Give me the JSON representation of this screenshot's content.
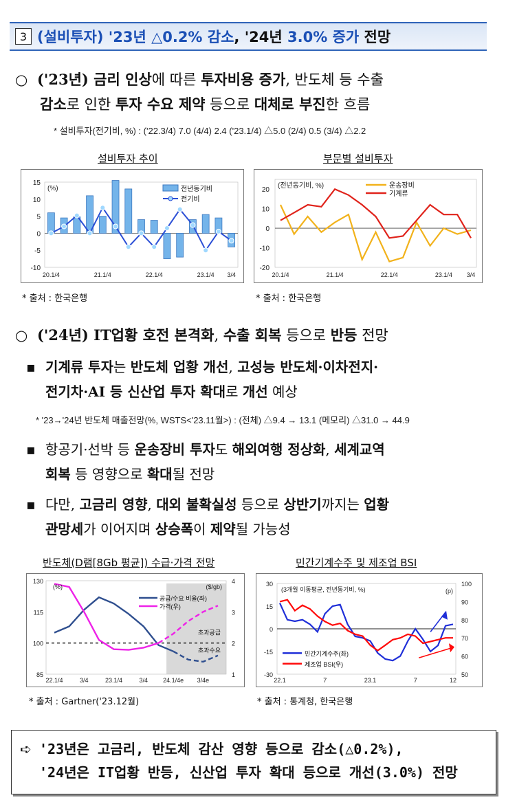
{
  "section": {
    "number": "3",
    "title_pre": "(설비투자) '23년 ",
    "title_v1": "△0.2% 감소",
    "title_mid": ", '24년 ",
    "title_v2": "3.0% 증가",
    "title_post": " 전망"
  },
  "p1": {
    "mark": "○",
    "tag": "('23년)",
    "line1_a": " 금리 인상",
    "line1_b": "에 따른 ",
    "line1_c": "투자비용 증가",
    "line1_d": ", 반도체 등 수출",
    "line2_a": "감소",
    "line2_b": "로 인한 ",
    "line2_c": "투자 수요 제약",
    "line2_d": " 등으로 ",
    "line2_e": "대체로 부진",
    "line2_f": "한 흐름",
    "note": "* 설비투자(전기비, %) : ('22.3/4) 7.0  (4/4) 2.4  ('23.1/4) △5.0  (2/4) 0.5  (3/4) △2.2"
  },
  "chart1": {
    "title": "설비투자 추이",
    "unit": "(%)",
    "legend": [
      "전년동기비",
      "전기비"
    ],
    "y_ticks": [
      "15",
      "10",
      "5",
      "0",
      "-5",
      "-10"
    ],
    "x_ticks": [
      "20.1/4",
      "21.1/4",
      "22.1/4",
      "23.1/4",
      "3/4"
    ],
    "source": "* 출처 : 한국은행"
  },
  "chart2": {
    "title": "부문별 설비투자",
    "unit": "(전년동기비, %)",
    "legend": [
      "운송장비",
      "기계류"
    ],
    "y_ticks": [
      "20",
      "10",
      "0",
      "-10",
      "-20"
    ],
    "x_ticks": [
      "20.1/4",
      "21.1/4",
      "22.1/4",
      "23.1/4",
      "3/4"
    ],
    "source": "* 출처 : 한국은행"
  },
  "p2": {
    "mark": "○",
    "tag": "('24년)",
    "text_a": " IT업황 호전 본격화",
    "text_b": ", ",
    "text_c": "수출 회복",
    "text_d": " 등으로 ",
    "text_e": "반등",
    "text_f": " 전망"
  },
  "s1": {
    "mark": "▪",
    "line1_a": "기계류 투자",
    "line1_b": "는 ",
    "line1_c": "반도체 업황 개선",
    "line1_d": ", ",
    "line1_e": "고성능 반도체·이차전지·",
    "line2_a": "전기차·AI 등 신산업 투자 확대",
    "line2_b": "로 ",
    "line2_c": "개선",
    "line2_d": " 예상",
    "note": "* '23→'24년 반도체 매출전망(%, WSTS<'23.11월>) : (전체) △9.4 → 13.1  (메모리) △31.0 → 44.9"
  },
  "s2": {
    "mark": "▪",
    "line1_a": "항공기·선박 등 ",
    "line1_b": "운송장비 투자",
    "line1_c": "도 ",
    "line1_d": "해외여행 정상화",
    "line1_e": ", ",
    "line1_f": "세계교역",
    "line2_a": "회복",
    "line2_b": " 등 영향으로 ",
    "line2_c": "확대",
    "line2_d": "될 전망"
  },
  "s3": {
    "mark": "▪",
    "line1_a": "다만, ",
    "line1_b": "고금리 영향",
    "line1_c": ", ",
    "line1_d": "대외 불확실성",
    "line1_e": " 등으로 ",
    "line1_f": "상반기",
    "line1_g": "까지는 ",
    "line1_h": "업황",
    "line2_a": "관망세",
    "line2_b": "가 이어지며 ",
    "line2_c": "상승폭",
    "line2_d": "이 ",
    "line2_e": "제약",
    "line2_f": "될 가능성"
  },
  "chart3": {
    "title": "반도체(D램[8Gb 평균]) 수급·가격 전망",
    "unit_left": "(%)",
    "unit_right": "($/gb)",
    "legend": [
      "공급/수요 비율(좌)",
      "가격(우)"
    ],
    "annot_top": "초과공급",
    "annot_bottom": "초과수요",
    "y_left": [
      "130",
      "115",
      "100",
      "85"
    ],
    "y_right": [
      "4",
      "3",
      "2",
      "1"
    ],
    "x_ticks": [
      "22.1/4",
      "3/4",
      "23.1/4",
      "3/4",
      "24.1/4e",
      "3/4e"
    ],
    "source": "* 출처 : Gartner('23.12월)"
  },
  "chart4": {
    "title": "민간기계수주 및 제조업 BSI",
    "unit_left": "(3개월 이동평균, 전년동기비, %)",
    "unit_right": "(p)",
    "legend": [
      "민간기계수주(좌)",
      "제조업 BSI(우)"
    ],
    "y_left": [
      "30",
      "15",
      "0",
      "-15",
      "-30"
    ],
    "y_right": [
      "100",
      "90",
      "80",
      "70",
      "60",
      "50"
    ],
    "x_ticks": [
      "22.1",
      "7",
      "23.1",
      "7",
      "12"
    ],
    "source": "* 출처 : 통계청, 한국은행"
  },
  "summary": {
    "arrow": "➪",
    "line1": "'23년은 고금리, 반도체 감산 영향 등으로 감소(△0.2%),",
    "line2": "'24년은 IT업황 반등, 신산업 투자 확대 등으로 개선(3.0%) 전망"
  },
  "chart_data": [
    {
      "type": "bar",
      "name": "설비투자 추이",
      "categories": [
        "20.1/4",
        "20.2/4",
        "20.3/4",
        "20.4/4",
        "21.1/4",
        "21.2/4",
        "21.3/4",
        "21.4/4",
        "22.1/4",
        "22.2/4",
        "22.3/4",
        "22.4/4",
        "23.1/4",
        "23.2/4",
        "23.3/4"
      ],
      "series": [
        {
          "name": "전년동기비",
          "values": [
            6.0,
            4.5,
            4.8,
            11.0,
            5.0,
            15.5,
            13.0,
            4.0,
            3.8,
            -7.5,
            -7.0,
            4.0,
            5.5,
            4.5,
            -4.0
          ]
        },
        {
          "name": "전기비",
          "values": [
            0.0,
            2.0,
            5.2,
            0.0,
            7.5,
            2.0,
            -4.0,
            0.0,
            -4.0,
            1.5,
            7.0,
            2.4,
            -5.0,
            0.5,
            -2.2
          ]
        }
      ],
      "ylim": [
        -10,
        15
      ]
    },
    {
      "type": "line",
      "name": "부문별 설비투자",
      "categories": [
        "20.1/4",
        "20.2/4",
        "20.3/4",
        "20.4/4",
        "21.1/4",
        "21.2/4",
        "21.3/4",
        "21.4/4",
        "22.1/4",
        "22.2/4",
        "22.3/4",
        "22.4/4",
        "23.1/4",
        "23.2/4",
        "23.3/4"
      ],
      "series": [
        {
          "name": "운송장비",
          "values": [
            12,
            -3,
            6,
            -2,
            3,
            7,
            -16,
            -2,
            -17,
            -15,
            3,
            -9,
            0,
            -3,
            -1
          ]
        },
        {
          "name": "기계류",
          "values": [
            4,
            8,
            12,
            11,
            20,
            17,
            12,
            6,
            -5,
            -4,
            4,
            12,
            7,
            7,
            -5
          ]
        }
      ],
      "ylim": [
        -20,
        25
      ]
    },
    {
      "type": "line",
      "name": "반도체(D램[8Gb 평균]) 수급·가격 전망",
      "categories": [
        "22.1/4",
        "22.2/4",
        "22.3/4",
        "22.4/4",
        "23.1/4",
        "23.2/4",
        "23.3/4",
        "23.4/4",
        "24.1/4e",
        "24.2/4e",
        "24.3/4e",
        "24.4/4e"
      ],
      "series": [
        {
          "name": "공급/수요 비율(좌)",
          "axis": "left",
          "values": [
            105,
            108,
            116,
            122,
            119,
            114,
            108,
            99,
            96,
            92,
            91,
            94
          ]
        },
        {
          "name": "가격(우)",
          "axis": "right",
          "values": [
            3.9,
            3.8,
            3.0,
            2.1,
            1.8,
            1.78,
            1.85,
            2.0,
            2.3,
            2.7,
            3.0,
            3.2
          ]
        }
      ],
      "ylim_left": [
        85,
        130
      ],
      "ylim_right": [
        1,
        4
      ],
      "reference_line": 100,
      "shaded_forecast_from": "24.1/4e"
    },
    {
      "type": "line",
      "name": "민간기계수주 및 제조업 BSI",
      "x": [
        "22.1",
        "22.2",
        "22.3",
        "22.4",
        "22.5",
        "22.6",
        "22.7",
        "22.8",
        "22.9",
        "22.10",
        "22.11",
        "22.12",
        "23.1",
        "23.2",
        "23.3",
        "23.4",
        "23.5",
        "23.6",
        "23.7",
        "23.8",
        "23.9",
        "23.10",
        "23.11",
        "23.12"
      ],
      "series": [
        {
          "name": "민간기계수주(좌)",
          "axis": "left",
          "values": [
            17,
            6,
            5,
            6,
            3,
            -2,
            10,
            15,
            16,
            3,
            -5,
            -6,
            -8,
            -16,
            -20,
            -21,
            -18,
            -8,
            0,
            -7,
            -15,
            -11,
            2,
            3
          ]
        },
        {
          "name": "제조업 BSI(우)",
          "axis": "right",
          "values": [
            90,
            91,
            85,
            88,
            86,
            82,
            79,
            77,
            78,
            74,
            72,
            71,
            66,
            63,
            66,
            69,
            70,
            72,
            71,
            67,
            68,
            69,
            70,
            70
          ]
        }
      ],
      "ylim_left": [
        -30,
        30
      ],
      "ylim_right": [
        50,
        100
      ]
    }
  ]
}
